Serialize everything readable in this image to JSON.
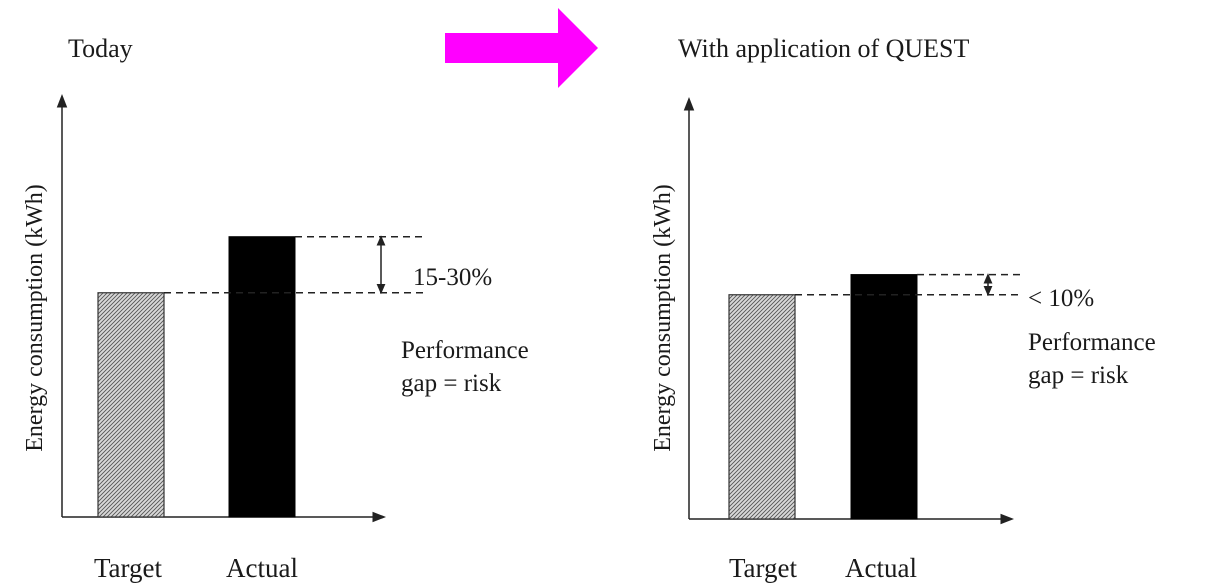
{
  "arrow_color": "#ff00ff",
  "chart_data": [
    {
      "type": "bar",
      "title": "Today",
      "ylabel": "Energy consumption (kWh)",
      "categories": [
        "Target",
        "Actual"
      ],
      "values": [
        100,
        125
      ],
      "ylim": [
        0,
        165
      ],
      "axis_ticks": false,
      "grid": false,
      "bar_styles": [
        "hatched",
        "black"
      ],
      "gap_label": "15-30%",
      "note_lines": [
        "Performance",
        "gap = risk"
      ]
    },
    {
      "type": "bar",
      "title": "With application of QUEST",
      "ylabel": "Energy consumption (kWh)",
      "categories": [
        "Target",
        "Actual"
      ],
      "values": [
        100,
        109
      ],
      "ylim": [
        0,
        165
      ],
      "axis_ticks": false,
      "grid": false,
      "bar_styles": [
        "hatched",
        "black"
      ],
      "gap_label": "< 10%",
      "note_lines": [
        "Performance",
        "gap = risk"
      ]
    }
  ]
}
